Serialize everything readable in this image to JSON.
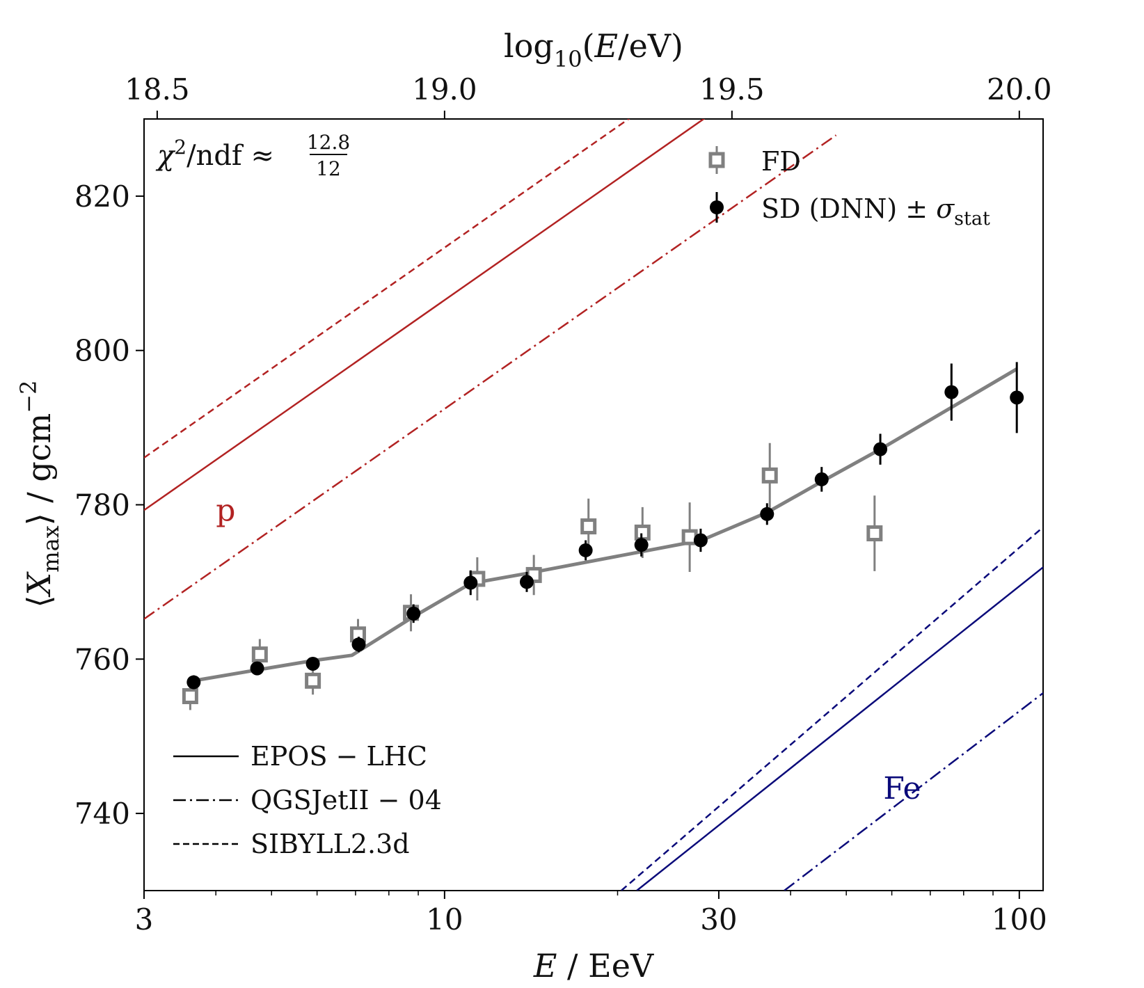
{
  "chart_data": {
    "type": "scatter",
    "title": "",
    "xlabel_parts": {
      "var": "E",
      "rest": " / EeV"
    },
    "ylabel_parts": {
      "lang": "⟨",
      "var": "X",
      "sub": "max",
      "rang": "⟩",
      "unit": " / gcm",
      "sup": "−2"
    },
    "top_xlabel_parts": {
      "pre": "log",
      "sub": "10",
      "open": "(",
      "var": "E",
      "rest": "/eV)"
    },
    "xscale": "log",
    "xlim": [
      3,
      110
    ],
    "ylim": [
      730,
      830
    ],
    "x_ticks": [
      3,
      10,
      30,
      100
    ],
    "x_tick_labels": [
      "3",
      "10",
      "30",
      "100"
    ],
    "y_ticks": [
      740,
      760,
      780,
      800,
      820
    ],
    "y_tick_labels": [
      "740",
      "760",
      "780",
      "800",
      "820"
    ],
    "top_ticks_log10": [
      18.5,
      19.0,
      19.5,
      20.0
    ],
    "top_tick_labels": [
      "18.5",
      "19.0",
      "19.5",
      "20.0"
    ],
    "chi2": {
      "chi": "χ",
      "sup": "2",
      "text": "/ndf ≈",
      "num": "12.8",
      "den": "12"
    },
    "fd": {
      "label": "FD",
      "color": "#808080",
      "x": [
        3.61,
        4.77,
        5.9,
        7.07,
        8.74,
        11.4,
        14.3,
        17.8,
        22.1,
        26.7,
        36.8,
        56.0
      ],
      "y": [
        755.2,
        760.6,
        757.2,
        763.2,
        766.0,
        770.4,
        770.9,
        777.2,
        776.4,
        775.8,
        783.8,
        776.3
      ],
      "err": [
        1.8,
        2.0,
        1.8,
        2.0,
        2.4,
        2.8,
        2.6,
        3.6,
        3.3,
        4.5,
        4.2,
        4.9
      ]
    },
    "sd": {
      "label_parts": {
        "main": "SD (DNN)  ±  ",
        "sym": "σ",
        "sub": "stat"
      },
      "color": "#000000",
      "x": [
        3.66,
        4.72,
        5.9,
        7.09,
        8.83,
        11.1,
        13.9,
        17.6,
        22.0,
        27.9,
        36.4,
        45.3,
        57.3,
        76.2,
        99.0
      ],
      "y": [
        757.0,
        758.8,
        759.4,
        761.9,
        765.9,
        769.9,
        770.0,
        774.1,
        774.8,
        775.4,
        778.8,
        783.3,
        787.2,
        794.6,
        793.9
      ],
      "err": [
        0.9,
        0.8,
        0.8,
        1.0,
        1.2,
        1.6,
        1.3,
        1.3,
        1.5,
        1.5,
        1.4,
        1.6,
        2.0,
        3.7,
        4.6
      ]
    },
    "fit": {
      "color": "#808080",
      "x": [
        3.66,
        4.72,
        5.9,
        6.9,
        8.83,
        11.1,
        13.9,
        28.0,
        31.0,
        36.4,
        45.3,
        57.3,
        99.0
      ],
      "y": [
        757.2,
        758.6,
        759.8,
        760.5,
        765.5,
        769.8,
        771.1,
        775.4,
        776.8,
        779.0,
        783.0,
        787.2,
        797.6
      ]
    },
    "models": [
      {
        "name": "p SIBYLL2.3d",
        "color": "#b22222",
        "style": "dashed",
        "x": [
          3.0,
          48.0
        ],
        "y": [
          786.1,
          848.8
        ]
      },
      {
        "name": "p EPOS-LHC",
        "color": "#b22222",
        "style": "solid",
        "x": [
          3.0,
          48.0
        ],
        "y": [
          779.3,
          842.0
        ]
      },
      {
        "name": "p QGSJetII-04",
        "color": "#b22222",
        "style": "dashdot",
        "x": [
          3.0,
          48.0
        ],
        "y": [
          765.2,
          827.9
        ]
      },
      {
        "name": "Fe SIBYLL2.3d",
        "color": "#0a0a7a",
        "style": "dashed",
        "x": [
          20.3,
          110.0
        ],
        "y": [
          730.0,
          777.1
        ]
      },
      {
        "name": "Fe EPOS-LHC",
        "color": "#0a0a7a",
        "style": "solid",
        "x": [
          21.6,
          110.0
        ],
        "y": [
          730.0,
          771.9
        ]
      },
      {
        "name": "Fe QGSJetII-04",
        "color": "#0a0a7a",
        "style": "dashdot",
        "x": [
          39.0,
          110.0
        ],
        "y": [
          730.0,
          755.6
        ]
      }
    ],
    "annotations": [
      {
        "text": "p",
        "color": "#b22222",
        "x": 4.0,
        "y": 779.0
      },
      {
        "text": "Fe",
        "color": "#0a0a7a",
        "x": 58.0,
        "y": 743.0
      }
    ],
    "legend_models": [
      {
        "label": "EPOS − LHC",
        "style": "solid"
      },
      {
        "label": "QGSJetII − 04",
        "style": "dashdot"
      },
      {
        "label": "SIBYLL2.3d",
        "style": "dashed"
      }
    ]
  }
}
